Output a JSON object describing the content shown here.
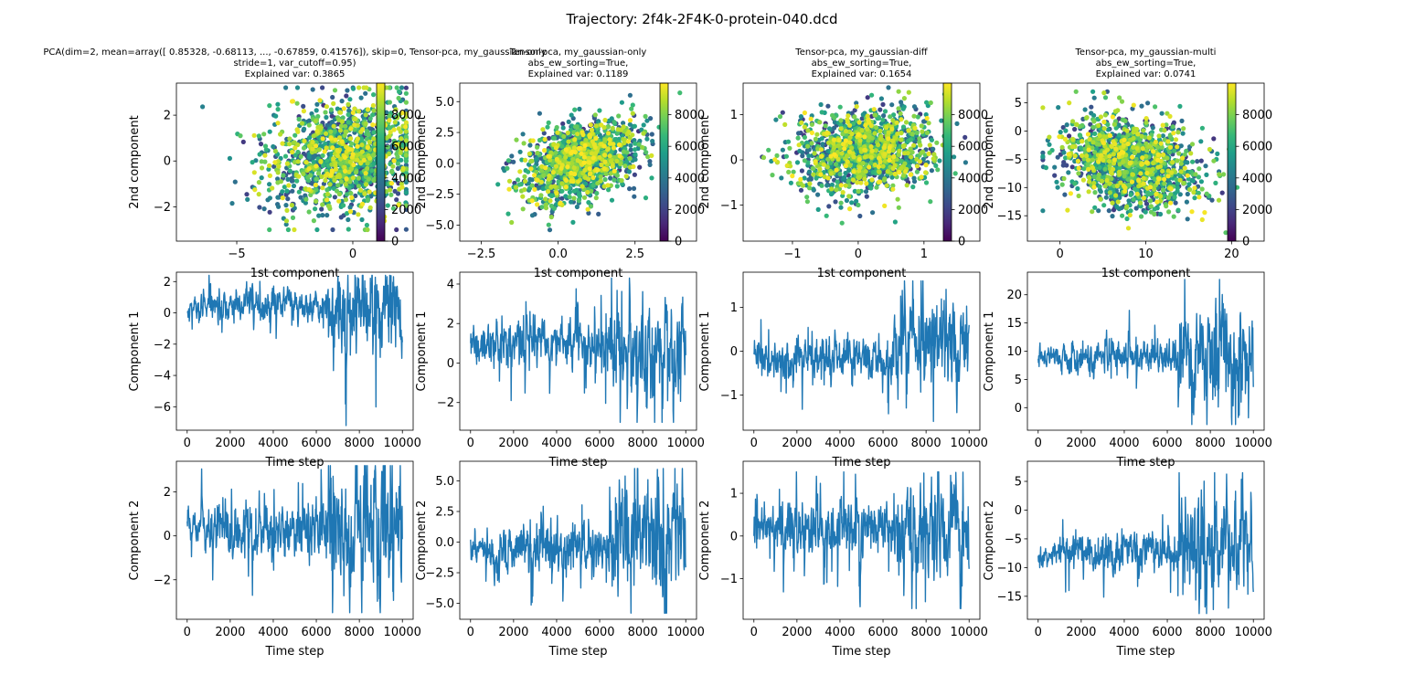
{
  "figure": {
    "suptitle": "Trajectory: 2f4k-2F4K-0-protein-040.dcd"
  },
  "colors": {
    "line": "#1f77b4",
    "viridis": [
      "#440154",
      "#482878",
      "#3e4989",
      "#31688e",
      "#26828e",
      "#1f9e89",
      "#35b779",
      "#6ece58",
      "#b5de2b",
      "#fde725"
    ]
  },
  "chart_data": [
    {
      "type": "scatter",
      "title": [
        "PCA(dim=2, mean=array([ 0.85328, -0.68113, ..., -0.67859,  0.41576]), skip=0, Tensor-pca, my_gaussian-only",
        "stride=1, var_cutoff=0.95)",
        "Explained var: 0.3865"
      ],
      "xlabel": "1st component",
      "ylabel": "2nd component",
      "xlim": [
        -7.6,
        2.6
      ],
      "ylim": [
        -3.5,
        3.4
      ],
      "xticks": [
        -5,
        0
      ],
      "yticks": [
        -2,
        0,
        2
      ],
      "cloud": {
        "cx": -0.3,
        "cy": 0.2,
        "sx": 1.6,
        "sy": 1.2,
        "rho": 0.1,
        "clip_x": [
          -7.3,
          2.3
        ],
        "clip_y": [
          -3.0,
          3.2
        ]
      },
      "colorbar": {
        "range": [
          0,
          10000
        ],
        "ticks": [
          0,
          2000,
          4000,
          6000,
          8000
        ]
      }
    },
    {
      "type": "scatter",
      "title": [
        "Tensor-pca, my_gaussian-only",
        "abs_ew_sorting=True,",
        "Explained var: 0.1189"
      ],
      "xlabel": "1st component",
      "ylabel": "2nd component",
      "xlim": [
        -3.2,
        4.5
      ],
      "ylim": [
        -6.3,
        6.5
      ],
      "xticks": [
        -2.5,
        0.0,
        2.5
      ],
      "yticks": [
        -5.0,
        -2.5,
        0.0,
        2.5,
        5.0
      ],
      "cloud": {
        "cx": 0.7,
        "cy": 0.2,
        "sx": 0.9,
        "sy": 1.6,
        "rho": 0.4,
        "clip_x": [
          -3.0,
          4.2
        ],
        "clip_y": [
          -5.8,
          6.0
        ]
      },
      "colorbar": {
        "range": [
          0,
          10000
        ],
        "ticks": [
          0,
          2000,
          4000,
          6000,
          8000
        ]
      }
    },
    {
      "type": "scatter",
      "title": [
        "Tensor-pca, my_gaussian-diff",
        "abs_ew_sorting=True,",
        "Explained var: 0.1654"
      ],
      "xlabel": "1st component",
      "ylabel": "2nd component",
      "xlim": [
        -1.75,
        1.85
      ],
      "ylim": [
        -1.8,
        1.7
      ],
      "xticks": [
        -1,
        0,
        1
      ],
      "yticks": [
        -1,
        0,
        1
      ],
      "cloud": {
        "cx": 0.1,
        "cy": 0.2,
        "sx": 0.5,
        "sy": 0.45,
        "rho": 0.1,
        "clip_x": [
          -1.6,
          1.7
        ],
        "clip_y": [
          -1.4,
          1.6
        ]
      },
      "colorbar": {
        "range": [
          0,
          10000
        ],
        "ticks": [
          0,
          2000,
          4000,
          6000,
          8000
        ]
      }
    },
    {
      "type": "scatter",
      "title": [
        "Tensor-pca, my_gaussian-multi",
        "abs_ew_sorting=True,",
        "Explained var: 0.0741"
      ],
      "xlabel": "1st component",
      "ylabel": "2nd component",
      "xlim": [
        -3.8,
        23.8
      ],
      "ylim": [
        -19.5,
        8.5
      ],
      "xticks": [
        0,
        10,
        20
      ],
      "yticks": [
        -15,
        -10,
        -5,
        0,
        5
      ],
      "cloud": {
        "cx": 8.5,
        "cy": -5.5,
        "sx": 4.0,
        "sy": 4.0,
        "rho": -0.2,
        "clip_x": [
          -2.0,
          22.0
        ],
        "clip_y": [
          -18.0,
          7.0
        ]
      },
      "colorbar": {
        "range": [
          0,
          10000
        ],
        "ticks": [
          0,
          2000,
          4000,
          6000,
          8000
        ]
      }
    },
    {
      "type": "line",
      "ylabel": "Component 1",
      "xlabel": "Time step",
      "xlim": [
        -500,
        10500
      ],
      "ylim": [
        -7.5,
        2.6
      ],
      "xticks": [
        0,
        2000,
        4000,
        6000,
        8000,
        10000
      ],
      "yticks": [
        -6,
        -4,
        -2,
        0,
        2
      ],
      "segments": [
        {
          "to": 1000,
          "mean": 0.4,
          "sd": 0.4
        },
        {
          "to": 6500,
          "mean": 0.6,
          "sd": 0.45
        },
        {
          "to": 10000,
          "mean": 0.0,
          "sd": 1.3
        }
      ],
      "clip": [
        -7.2,
        2.4
      ]
    },
    {
      "type": "line",
      "ylabel": "Component 1",
      "xlabel": "Time step",
      "xlim": [
        -500,
        10500
      ],
      "ylim": [
        -3.4,
        4.6
      ],
      "xticks": [
        0,
        2000,
        4000,
        6000,
        8000,
        10000
      ],
      "yticks": [
        -2,
        0,
        2,
        4
      ],
      "segments": [
        {
          "to": 1000,
          "mean": 1.0,
          "sd": 0.45
        },
        {
          "to": 6500,
          "mean": 1.0,
          "sd": 0.55
        },
        {
          "to": 10000,
          "mean": 0.6,
          "sd": 1.1
        }
      ],
      "clip": [
        -3.0,
        4.3
      ]
    },
    {
      "type": "line",
      "ylabel": "Component 1",
      "xlabel": "Time step",
      "xlim": [
        -500,
        10500
      ],
      "ylim": [
        -1.8,
        1.8
      ],
      "xticks": [
        0,
        2000,
        4000,
        6000,
        8000,
        10000
      ],
      "yticks": [
        -1,
        0,
        1
      ],
      "segments": [
        {
          "to": 1000,
          "mean": -0.15,
          "sd": 0.2
        },
        {
          "to": 6500,
          "mean": -0.2,
          "sd": 0.22
        },
        {
          "to": 10000,
          "mean": 0.1,
          "sd": 0.45
        }
      ],
      "clip": [
        -1.6,
        1.6
      ]
    },
    {
      "type": "line",
      "ylabel": "Component 1",
      "xlabel": "Time step",
      "xlim": [
        -500,
        10500
      ],
      "ylim": [
        -4.0,
        24.0
      ],
      "xticks": [
        0,
        2000,
        4000,
        6000,
        8000,
        10000
      ],
      "yticks": [
        0,
        5,
        10,
        15,
        20
      ],
      "segments": [
        {
          "to": 1000,
          "mean": 9.3,
          "sd": 0.8
        },
        {
          "to": 6500,
          "mean": 9.0,
          "sd": 1.3
        },
        {
          "to": 10000,
          "mean": 8.5,
          "sd": 4.0
        }
      ],
      "clip": [
        -3.0,
        22.7
      ]
    },
    {
      "type": "line",
      "ylabel": "Component 2",
      "xlabel": "Time step",
      "xlim": [
        -500,
        10500
      ],
      "ylim": [
        -3.8,
        3.4
      ],
      "xticks": [
        0,
        2000,
        4000,
        6000,
        8000,
        10000
      ],
      "yticks": [
        -2,
        0,
        2
      ],
      "segments": [
        {
          "to": 1000,
          "mean": 0.4,
          "sd": 0.4
        },
        {
          "to": 6500,
          "mean": 0.2,
          "sd": 0.6
        },
        {
          "to": 10000,
          "mean": 0.0,
          "sd": 1.3
        }
      ],
      "clip": [
        -3.5,
        3.2
      ]
    },
    {
      "type": "line",
      "ylabel": "Component 2",
      "xlabel": "Time step",
      "xlim": [
        -500,
        10500
      ],
      "ylim": [
        -6.3,
        6.6
      ],
      "xticks": [
        0,
        2000,
        4000,
        6000,
        8000,
        10000
      ],
      "yticks": [
        -5.0,
        -2.5,
        0.0,
        2.5,
        5.0
      ],
      "segments": [
        {
          "to": 1000,
          "mean": -0.5,
          "sd": 0.6
        },
        {
          "to": 6500,
          "mean": -0.5,
          "sd": 0.9
        },
        {
          "to": 10000,
          "mean": 1.0,
          "sd": 2.0
        }
      ],
      "clip": [
        -5.8,
        6.0
      ]
    },
    {
      "type": "line",
      "ylabel": "Component 2",
      "xlabel": "Time step",
      "xlim": [
        -500,
        10500
      ],
      "ylim": [
        -1.95,
        1.75
      ],
      "xticks": [
        0,
        2000,
        4000,
        6000,
        8000,
        10000
      ],
      "yticks": [
        -1,
        0,
        1
      ],
      "segments": [
        {
          "to": 1000,
          "mean": 0.3,
          "sd": 0.2
        },
        {
          "to": 6500,
          "mean": 0.2,
          "sd": 0.28
        },
        {
          "to": 10000,
          "mean": 0.1,
          "sd": 0.5
        }
      ],
      "clip": [
        -1.7,
        1.5
      ]
    },
    {
      "type": "line",
      "ylabel": "Component 2",
      "xlabel": "Time step",
      "xlim": [
        -500,
        10500
      ],
      "ylim": [
        -19.0,
        8.5
      ],
      "xticks": [
        0,
        2000,
        4000,
        6000,
        8000,
        10000
      ],
      "yticks": [
        -15,
        -10,
        -5,
        0,
        5
      ],
      "segments": [
        {
          "to": 1000,
          "mean": -8.0,
          "sd": 1.0
        },
        {
          "to": 6500,
          "mean": -7.5,
          "sd": 1.5
        },
        {
          "to": 10000,
          "mean": -6.0,
          "sd": 4.0
        }
      ],
      "clip": [
        -18.0,
        6.5
      ]
    }
  ]
}
